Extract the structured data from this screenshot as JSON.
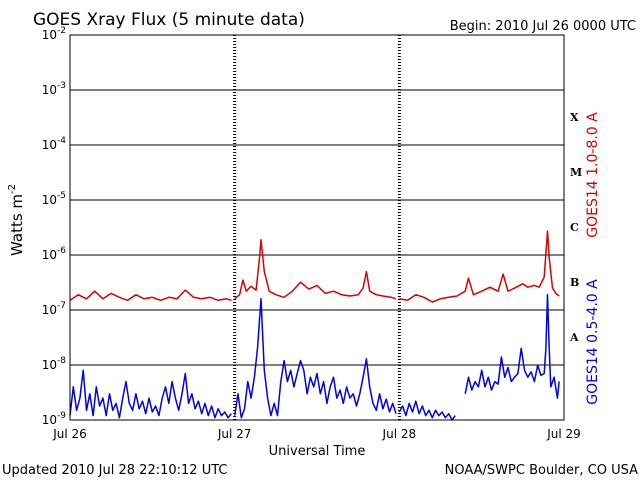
{
  "chart_data": {
    "type": "line",
    "title": "GOES Xray Flux (5 minute data)",
    "begin_label": "Begin:  2010 Jul 26 0000 UTC",
    "ylabel": "Watts m",
    "ylabel_exp": "-2",
    "xlabel": "Universal Time",
    "x_ticks": [
      "Jul 26",
      "Jul 27",
      "Jul 28",
      "Jul 29"
    ],
    "x_range": [
      0,
      3
    ],
    "y_scale": "log",
    "ylim": [
      1e-09,
      0.01
    ],
    "y_ticks": [
      {
        "base": "10",
        "exp": "-9",
        "value": 1e-09
      },
      {
        "base": "10",
        "exp": "-8",
        "value": 1e-08
      },
      {
        "base": "10",
        "exp": "-7",
        "value": 1e-07
      },
      {
        "base": "10",
        "exp": "-6",
        "value": 1e-06
      },
      {
        "base": "10",
        "exp": "-5",
        "value": 1e-05
      },
      {
        "base": "10",
        "exp": "-4",
        "value": 0.0001
      },
      {
        "base": "10",
        "exp": "-3",
        "value": 0.001
      },
      {
        "base": "10",
        "exp": "-2",
        "value": 0.01
      }
    ],
    "flare_classes": [
      {
        "label": "X",
        "value": 0.00032
      },
      {
        "label": "M",
        "value": 3.2e-05
      },
      {
        "label": "C",
        "value": 3.2e-06
      },
      {
        "label": "B",
        "value": 3.2e-07
      },
      {
        "label": "A",
        "value": 3.2e-08
      }
    ],
    "grid": true,
    "series": [
      {
        "name": "GOES14 1.0-8.0 A",
        "color": "#dd0000",
        "points": [
          [
            0.0,
            1.5e-07
          ],
          [
            0.05,
            1.9e-07
          ],
          [
            0.1,
            1.6e-07
          ],
          [
            0.15,
            2.2e-07
          ],
          [
            0.2,
            1.6e-07
          ],
          [
            0.25,
            2e-07
          ],
          [
            0.3,
            1.7e-07
          ],
          [
            0.35,
            1.5e-07
          ],
          [
            0.4,
            1.9e-07
          ],
          [
            0.45,
            1.6e-07
          ],
          [
            0.5,
            1.7e-07
          ],
          [
            0.55,
            1.5e-07
          ],
          [
            0.6,
            1.7e-07
          ],
          [
            0.65,
            1.6e-07
          ],
          [
            0.7,
            2.3e-07
          ],
          [
            0.75,
            1.7e-07
          ],
          [
            0.8,
            1.6e-07
          ],
          [
            0.85,
            1.7e-07
          ],
          [
            0.9,
            1.5e-07
          ],
          [
            0.95,
            1.6e-07
          ],
          [
            0.98,
            1.5e-07
          ],
          [
            null,
            null
          ],
          [
            1.0,
            1.6e-07
          ],
          [
            1.03,
            1.9e-07
          ],
          [
            1.05,
            3.5e-07
          ],
          [
            1.07,
            2.2e-07
          ],
          [
            1.1,
            2.7e-07
          ],
          [
            1.13,
            2.3e-07
          ],
          [
            1.15,
            8.5e-07
          ],
          [
            1.16,
            1.9e-06
          ],
          [
            1.18,
            5e-07
          ],
          [
            1.21,
            2.2e-07
          ],
          [
            1.25,
            1.9e-07
          ],
          [
            1.3,
            1.7e-07
          ],
          [
            1.35,
            2.2e-07
          ],
          [
            1.4,
            3.2e-07
          ],
          [
            1.45,
            2.4e-07
          ],
          [
            1.5,
            2.8e-07
          ],
          [
            1.55,
            2e-07
          ],
          [
            1.6,
            2.2e-07
          ],
          [
            1.65,
            1.9e-07
          ],
          [
            1.7,
            1.8e-07
          ],
          [
            1.75,
            1.9e-07
          ],
          [
            1.78,
            2.5e-07
          ],
          [
            1.8,
            5e-07
          ],
          [
            1.82,
            2.2e-07
          ],
          [
            1.86,
            1.9e-07
          ],
          [
            1.9,
            1.8e-07
          ],
          [
            1.95,
            1.7e-07
          ],
          [
            1.98,
            1.6e-07
          ],
          [
            null,
            null
          ],
          [
            2.0,
            1.6e-07
          ],
          [
            2.05,
            1.5e-07
          ],
          [
            2.1,
            1.9e-07
          ],
          [
            2.15,
            1.7e-07
          ],
          [
            2.2,
            1.4e-07
          ],
          [
            2.25,
            1.6e-07
          ],
          [
            2.3,
            1.7e-07
          ],
          [
            2.35,
            1.8e-07
          ],
          [
            2.4,
            2.2e-07
          ],
          [
            2.42,
            3.8e-07
          ],
          [
            2.45,
            1.9e-07
          ],
          [
            2.5,
            2.2e-07
          ],
          [
            2.55,
            2.6e-07
          ],
          [
            2.6,
            2.2e-07
          ],
          [
            2.63,
            4.5e-07
          ],
          [
            2.66,
            2.2e-07
          ],
          [
            2.7,
            2.5e-07
          ],
          [
            2.75,
            3e-07
          ],
          [
            2.78,
            2.6e-07
          ],
          [
            2.82,
            2.8e-07
          ],
          [
            2.85,
            2.6e-07
          ],
          [
            2.88,
            4e-07
          ],
          [
            2.9,
            2.7e-06
          ],
          [
            2.91,
            9e-07
          ],
          [
            2.93,
            2.5e-07
          ],
          [
            2.95,
            2e-07
          ],
          [
            2.97,
            1.8e-07
          ]
        ]
      },
      {
        "name": "GOES14 0.5-4.0 A",
        "color": "#0000ee",
        "points": [
          [
            0.0,
            1.2e-09
          ],
          [
            0.02,
            4e-09
          ],
          [
            0.04,
            1.5e-09
          ],
          [
            0.06,
            2.5e-09
          ],
          [
            0.08,
            8e-09
          ],
          [
            0.1,
            1.5e-09
          ],
          [
            0.12,
            3e-09
          ],
          [
            0.14,
            1.2e-09
          ],
          [
            0.16,
            4e-09
          ],
          [
            0.18,
            1.8e-09
          ],
          [
            0.2,
            2.5e-09
          ],
          [
            0.22,
            1.2e-09
          ],
          [
            0.24,
            3e-09
          ],
          [
            0.26,
            1.5e-09
          ],
          [
            0.28,
            2e-09
          ],
          [
            0.3,
            1.1e-09
          ],
          [
            0.32,
            2.5e-09
          ],
          [
            0.34,
            5e-09
          ],
          [
            0.36,
            2e-09
          ],
          [
            0.38,
            1.5e-09
          ],
          [
            0.4,
            3e-09
          ],
          [
            0.42,
            1.6e-09
          ],
          [
            0.44,
            2.2e-09
          ],
          [
            0.46,
            1.3e-09
          ],
          [
            0.48,
            2.5e-09
          ],
          [
            0.5,
            1.4e-09
          ],
          [
            0.52,
            1.8e-09
          ],
          [
            0.54,
            1.2e-09
          ],
          [
            0.56,
            2.5e-09
          ],
          [
            0.58,
            4e-09
          ],
          [
            0.6,
            2e-09
          ],
          [
            0.62,
            5e-09
          ],
          [
            0.64,
            2.5e-09
          ],
          [
            0.66,
            1.5e-09
          ],
          [
            0.68,
            3e-09
          ],
          [
            0.7,
            7e-09
          ],
          [
            0.72,
            2e-09
          ],
          [
            0.74,
            3e-09
          ],
          [
            0.76,
            1.6e-09
          ],
          [
            0.78,
            2.2e-09
          ],
          [
            0.8,
            1.3e-09
          ],
          [
            0.82,
            2e-09
          ],
          [
            0.84,
            1.2e-09
          ],
          [
            0.86,
            1.8e-09
          ],
          [
            0.88,
            1.1e-09
          ],
          [
            0.9,
            1.6e-09
          ],
          [
            0.92,
            1.2e-09
          ],
          [
            0.94,
            1.4e-09
          ],
          [
            0.96,
            1.1e-09
          ],
          [
            0.98,
            1.3e-09
          ],
          [
            null,
            null
          ],
          [
            1.0,
            1.2e-09
          ],
          [
            1.02,
            3e-09
          ],
          [
            1.04,
            1.1e-09
          ],
          [
            1.06,
            1.6e-09
          ],
          [
            1.08,
            5e-09
          ],
          [
            1.1,
            2.5e-09
          ],
          [
            1.12,
            6e-09
          ],
          [
            1.14,
            2.2e-08
          ],
          [
            1.16,
            1.6e-07
          ],
          [
            1.18,
            8e-09
          ],
          [
            1.2,
            2.5e-09
          ],
          [
            1.22,
            1.2e-09
          ],
          [
            1.24,
            2e-09
          ],
          [
            1.26,
            1.2e-09
          ],
          [
            1.28,
            5e-09
          ],
          [
            1.3,
            1.2e-08
          ],
          [
            1.32,
            5e-09
          ],
          [
            1.34,
            8e-09
          ],
          [
            1.36,
            4e-09
          ],
          [
            1.38,
            7e-09
          ],
          [
            1.4,
            1.2e-08
          ],
          [
            1.42,
            8e-09
          ],
          [
            1.44,
            3e-09
          ],
          [
            1.46,
            6e-09
          ],
          [
            1.48,
            4e-09
          ],
          [
            1.5,
            7e-09
          ],
          [
            1.52,
            3e-09
          ],
          [
            1.54,
            5e-09
          ],
          [
            1.56,
            2e-09
          ],
          [
            1.58,
            4e-09
          ],
          [
            1.6,
            6e-09
          ],
          [
            1.62,
            2.5e-09
          ],
          [
            1.64,
            3.5e-09
          ],
          [
            1.66,
            2e-09
          ],
          [
            1.68,
            4e-09
          ],
          [
            1.7,
            2.5e-09
          ],
          [
            1.72,
            3e-09
          ],
          [
            1.74,
            1.8e-09
          ],
          [
            1.76,
            3e-09
          ],
          [
            1.78,
            6e-09
          ],
          [
            1.8,
            1.3e-08
          ],
          [
            1.82,
            4e-09
          ],
          [
            1.84,
            2e-09
          ],
          [
            1.86,
            1.5e-09
          ],
          [
            1.88,
            3e-09
          ],
          [
            1.9,
            1.6e-09
          ],
          [
            1.92,
            2.4e-09
          ],
          [
            1.94,
            1.4e-09
          ],
          [
            1.96,
            2e-09
          ],
          [
            1.98,
            1.3e-09
          ],
          [
            null,
            null
          ],
          [
            2.0,
            1.4e-09
          ],
          [
            2.02,
            1.8e-09
          ],
          [
            2.04,
            1.2e-09
          ],
          [
            2.06,
            2e-09
          ],
          [
            2.08,
            1.4e-09
          ],
          [
            2.1,
            2.2e-09
          ],
          [
            2.12,
            1.3e-09
          ],
          [
            2.14,
            1.8e-09
          ],
          [
            2.16,
            1.2e-09
          ],
          [
            2.18,
            1.5e-09
          ],
          [
            2.2,
            1.1e-09
          ],
          [
            2.22,
            1.5e-09
          ],
          [
            2.24,
            1.2e-09
          ],
          [
            2.26,
            1.4e-09
          ],
          [
            2.28,
            1.1e-09
          ],
          [
            2.3,
            1.3e-09
          ],
          [
            2.32,
            1e-09
          ],
          [
            2.34,
            1.2e-09
          ],
          [
            null,
            null
          ],
          [
            2.4,
            3e-09
          ],
          [
            2.42,
            6e-09
          ],
          [
            2.44,
            3.5e-09
          ],
          [
            2.46,
            5e-09
          ],
          [
            2.48,
            4e-09
          ],
          [
            2.5,
            8e-09
          ],
          [
            2.52,
            4e-09
          ],
          [
            2.54,
            6e-09
          ],
          [
            2.56,
            3.5e-09
          ],
          [
            2.58,
            5e-09
          ],
          [
            2.6,
            4.5e-09
          ],
          [
            2.62,
            1.4e-08
          ],
          [
            2.64,
            6e-09
          ],
          [
            2.66,
            9e-09
          ],
          [
            2.68,
            5e-09
          ],
          [
            2.7,
            6e-09
          ],
          [
            2.72,
            7e-09
          ],
          [
            2.74,
            2e-08
          ],
          [
            2.76,
            8e-09
          ],
          [
            2.78,
            6e-09
          ],
          [
            2.8,
            7.5e-09
          ],
          [
            2.82,
            5e-09
          ],
          [
            2.84,
            1e-08
          ],
          [
            2.86,
            6.5e-09
          ],
          [
            2.88,
            7e-09
          ],
          [
            2.89,
            2e-08
          ],
          [
            2.9,
            1.9e-07
          ],
          [
            2.91,
            2e-08
          ],
          [
            2.92,
            4e-09
          ],
          [
            2.94,
            6e-09
          ],
          [
            2.96,
            2.5e-09
          ],
          [
            2.97,
            5e-09
          ]
        ]
      }
    ]
  },
  "footer": {
    "updated": "Updated 2010 Jul 28 22:10:12 UTC",
    "credit": "NOAA/SWPC Boulder, CO USA"
  }
}
